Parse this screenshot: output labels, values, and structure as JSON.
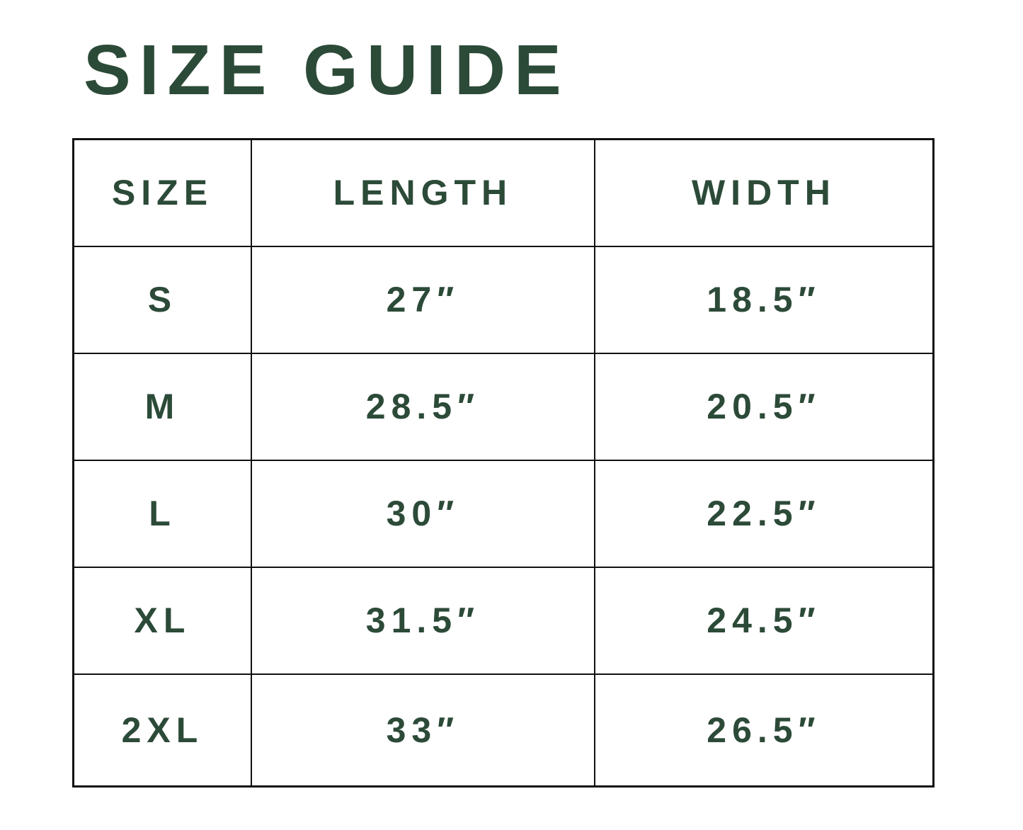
{
  "title": "SIZE GUIDE",
  "colors": {
    "text": "#2c4a38",
    "border": "#111111"
  },
  "table": {
    "headers": [
      "SIZE",
      "LENGTH",
      "WIDTH"
    ],
    "rows": [
      [
        "S",
        "27″",
        "18.5″"
      ],
      [
        "M",
        "28.5″",
        "20.5″"
      ],
      [
        "L",
        "30″",
        "22.5″"
      ],
      [
        "XL",
        "31.5″",
        "24.5″"
      ],
      [
        "2XL",
        "33″",
        "26.5″"
      ]
    ]
  }
}
